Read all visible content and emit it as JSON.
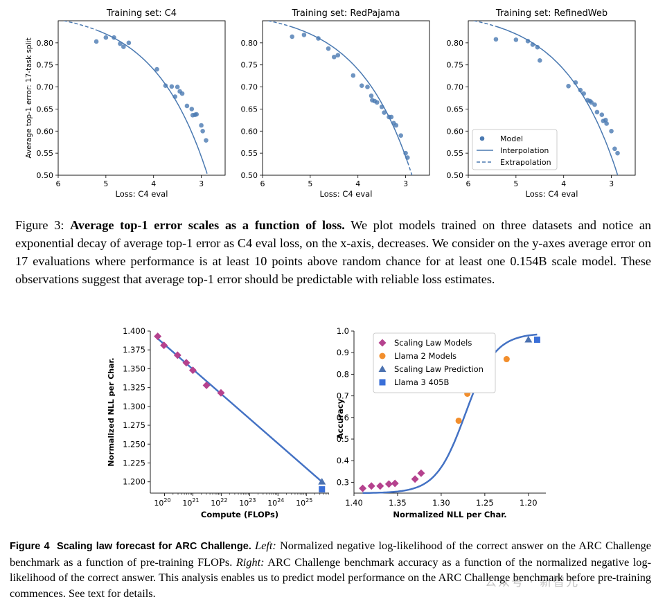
{
  "figure3": {
    "caption_label": "Figure 3:",
    "caption_bold": "Average top-1 error scales as a function of loss.",
    "caption_text": " We plot models trained on three datasets and notice an exponential decay of average top-1 error as C4 eval loss, on the x-axis, decreases. We consider on the y-axes average error on 17 evaluations where performance is at least 10 points above random chance for at least one 0.154B scale model. These observations suggest that average top-1 error should be predictable with reliable loss estimates."
  },
  "figure4": {
    "caption_label": "Figure 4",
    "caption_title": "Scaling law forecast for ARC Challenge.",
    "caption_left_label": "Left:",
    "caption_left_text": " Normalized negative log-likelihood of the correct answer on the ARC Challenge benchmark as a function of pre-training FLOPs. ",
    "caption_right_label": "Right:",
    "caption_right_text": " ARC Challenge benchmark accuracy as a function of the normalized negative log-likelihood of the correct answer. This analysis enables us to predict model performance on the ARC Challenge benchmark before pre-training commences. See text for details."
  },
  "watermark": "公众号 · 新智元",
  "colors": {
    "fig3_point": "#4a79b1",
    "fig3_line": "#4a79b1",
    "fig4_line": "#4472c4",
    "scaling_law_models": "#b5428e",
    "llama2": "#f28e2c",
    "scaling_law_prediction": "#4c72b0",
    "llama3": "#3a6fd8"
  },
  "chart_data": [
    {
      "type": "scatter",
      "title": "Training set: C4",
      "xlabel": "Loss: C4 eval",
      "ylabel": "Average top-1 error: 17-task split",
      "x_reversed": true,
      "xlim": [
        6.0,
        2.5
      ],
      "ylim": [
        0.5,
        0.85
      ],
      "xticks": [
        "6",
        "5",
        "4",
        "3"
      ],
      "yticks": [
        "0.50",
        "0.55",
        "0.60",
        "0.65",
        "0.70",
        "0.75",
        "0.80"
      ],
      "grid": false,
      "series": [
        {
          "kind": "points",
          "x": [
            5.2,
            5.0,
            4.83,
            4.7,
            4.63,
            4.52,
            3.93,
            3.75,
            3.62,
            3.55,
            3.5,
            3.45,
            3.4,
            3.3,
            3.2,
            3.18,
            3.13,
            3.1,
            3.0,
            2.97,
            2.9
          ],
          "y": [
            0.803,
            0.812,
            0.812,
            0.798,
            0.791,
            0.8,
            0.74,
            0.703,
            0.701,
            0.678,
            0.7,
            0.69,
            0.685,
            0.657,
            0.65,
            0.636,
            0.637,
            0.638,
            0.613,
            0.6,
            0.579
          ]
        },
        {
          "kind": "curve",
          "style": "solid",
          "a": 0.9,
          "b": 0.04,
          "c": 0.6,
          "xfrom": 5.2,
          "xto": 2.9
        },
        {
          "kind": "curve",
          "style": "dashed",
          "a": 0.9,
          "b": 0.04,
          "c": 0.6,
          "xfrom": 6.0,
          "xto": 5.2
        },
        {
          "kind": "curve",
          "style": "dashed",
          "a": 0.9,
          "b": 0.04,
          "c": 0.6,
          "xfrom": 2.9,
          "xto": 2.5
        }
      ]
    },
    {
      "type": "scatter",
      "title": "Training set: RedPajama",
      "xlabel": "Loss: C4 eval",
      "ylabel": "",
      "x_reversed": true,
      "xlim": [
        6.0,
        2.5
      ],
      "ylim": [
        0.5,
        0.85
      ],
      "xticks": [
        "6",
        "5",
        "4",
        "3"
      ],
      "yticks": [
        "0.50",
        "0.55",
        "0.60",
        "0.65",
        "0.70",
        "0.75",
        "0.80"
      ],
      "grid": false,
      "series": [
        {
          "kind": "points",
          "x": [
            5.38,
            5.13,
            4.83,
            4.62,
            4.5,
            4.42,
            4.1,
            3.92,
            3.8,
            3.72,
            3.7,
            3.65,
            3.6,
            3.5,
            3.45,
            3.35,
            3.3,
            3.25,
            3.2,
            3.1,
            3.0,
            2.96
          ],
          "y": [
            0.814,
            0.818,
            0.81,
            0.787,
            0.768,
            0.772,
            0.726,
            0.703,
            0.7,
            0.68,
            0.67,
            0.668,
            0.665,
            0.655,
            0.642,
            0.632,
            0.632,
            0.618,
            0.613,
            0.59,
            0.55,
            0.54
          ]
        },
        {
          "kind": "curve",
          "style": "solid",
          "a": 0.9,
          "b": 0.04,
          "c": 0.6,
          "xfrom": 5.38,
          "xto": 2.96
        },
        {
          "kind": "curve",
          "style": "dashed",
          "a": 0.9,
          "b": 0.04,
          "c": 0.6,
          "xfrom": 6.0,
          "xto": 5.38
        },
        {
          "kind": "curve",
          "style": "dashed",
          "a": 0.9,
          "b": 0.04,
          "c": 0.6,
          "xfrom": 2.96,
          "xto": 2.5
        }
      ]
    },
    {
      "type": "scatter",
      "title": "Training set: RefinedWeb",
      "xlabel": "Loss: C4 eval",
      "ylabel": "",
      "x_reversed": true,
      "xlim": [
        6.0,
        2.5
      ],
      "ylim": [
        0.5,
        0.85
      ],
      "xticks": [
        "6",
        "5",
        "4",
        "3"
      ],
      "yticks": [
        "0.50",
        "0.55",
        "0.60",
        "0.65",
        "0.70",
        "0.75",
        "0.80"
      ],
      "grid": false,
      "legend": {
        "placement": "lower-left",
        "entries": [
          "Model",
          "Interpolation",
          "Extrapolation"
        ]
      },
      "series": [
        {
          "kind": "points",
          "x": [
            5.42,
            5.0,
            4.75,
            4.65,
            4.55,
            4.5,
            3.9,
            3.75,
            3.65,
            3.58,
            3.5,
            3.45,
            3.42,
            3.35,
            3.3,
            3.2,
            3.17,
            3.12,
            3.1,
            3.0,
            2.93,
            2.87
          ],
          "y": [
            0.808,
            0.807,
            0.804,
            0.796,
            0.79,
            0.76,
            0.702,
            0.71,
            0.693,
            0.685,
            0.67,
            0.668,
            0.665,
            0.66,
            0.643,
            0.637,
            0.623,
            0.625,
            0.617,
            0.6,
            0.56,
            0.55
          ]
        },
        {
          "kind": "curve",
          "style": "solid",
          "a": 0.9,
          "b": 0.04,
          "c": 0.6,
          "xfrom": 5.42,
          "xto": 2.87
        },
        {
          "kind": "curve",
          "style": "dashed",
          "a": 0.9,
          "b": 0.04,
          "c": 0.6,
          "xfrom": 6.0,
          "xto": 5.42
        },
        {
          "kind": "curve",
          "style": "dashed",
          "a": 0.9,
          "b": 0.04,
          "c": 0.6,
          "xfrom": 2.87,
          "xto": 2.5
        }
      ]
    },
    {
      "type": "scatter",
      "title": "",
      "xlabel": "Compute (FLOPs)",
      "ylabel": "Normalized NLL per Char.",
      "x_scale": "log",
      "xlim_log10": [
        19.5,
        25.8
      ],
      "ylim": [
        1.185,
        1.4
      ],
      "xticks_log10": [
        20,
        21,
        22,
        23,
        24,
        25
      ],
      "yticks": [
        "1.200",
        "1.225",
        "1.250",
        "1.275",
        "1.300",
        "1.325",
        "1.350",
        "1.375",
        "1.400"
      ],
      "grid": false,
      "series": [
        {
          "kind": "line",
          "log10_x": [
            19.76,
            25.55
          ],
          "y": [
            1.39,
            1.2
          ]
        },
        {
          "kind": "points",
          "name": "Scaling Law Models",
          "marker": "diamond",
          "log10_x": [
            19.76,
            19.98,
            20.46,
            20.77,
            21.0,
            21.48,
            21.99
          ],
          "y": [
            1.393,
            1.381,
            1.368,
            1.358,
            1.348,
            1.328,
            1.318
          ]
        },
        {
          "kind": "points",
          "name": "Scaling Law Prediction",
          "marker": "triangle",
          "log10_x": [
            25.55
          ],
          "y": [
            1.2
          ]
        },
        {
          "kind": "points",
          "name": "Llama 3 405B",
          "marker": "square",
          "log10_x": [
            25.55
          ],
          "y": [
            1.19
          ]
        }
      ]
    },
    {
      "type": "scatter",
      "title": "",
      "xlabel": "Normalized NLL per Char.",
      "ylabel": "Accuracy",
      "x_reversed": true,
      "xlim": [
        1.4,
        1.18
      ],
      "ylim": [
        0.25,
        1.0
      ],
      "xticks": [
        "1.40",
        "1.35",
        "1.30",
        "1.25",
        "1.20"
      ],
      "yticks": [
        "0.3",
        "0.4",
        "0.5",
        "0.6",
        "0.7",
        "0.8",
        "0.9",
        "1.0"
      ],
      "grid": false,
      "legend": {
        "placement": "upper-left",
        "entries": [
          "Scaling Law Models",
          "Llama 2 Models",
          "Scaling Law Prediction",
          "Llama 3 405B"
        ]
      },
      "series": [
        {
          "kind": "sigmoid",
          "lo": 0.25,
          "hi": 0.99,
          "center": 1.272,
          "scale": 0.017,
          "xfrom": 1.39,
          "xto": 1.19
        },
        {
          "kind": "points",
          "name": "Scaling Law Models",
          "marker": "diamond",
          "x": [
            1.39,
            1.38,
            1.37,
            1.36,
            1.353,
            1.33,
            1.323
          ],
          "y": [
            0.272,
            0.283,
            0.283,
            0.292,
            0.295,
            0.315,
            0.342
          ]
        },
        {
          "kind": "points",
          "name": "Llama 2 Models",
          "marker": "circle",
          "x": [
            1.28,
            1.27,
            1.245,
            1.225
          ],
          "y": [
            0.585,
            0.71,
            0.8,
            0.87
          ]
        },
        {
          "kind": "points",
          "name": "Scaling Law Prediction",
          "marker": "triangle",
          "x": [
            1.2
          ],
          "y": [
            0.96
          ]
        },
        {
          "kind": "points",
          "name": "Llama 3 405B",
          "marker": "square",
          "x": [
            1.19
          ],
          "y": [
            0.96
          ]
        }
      ]
    }
  ]
}
